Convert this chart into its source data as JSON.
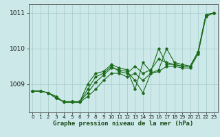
{
  "xlabel": "Graphe pression niveau de la mer (hPa)",
  "bg_color": "#cce8e8",
  "grid_color": "#aad0d0",
  "line_color": "#1a6b1a",
  "series": [
    [
      1008.8,
      1008.8,
      1008.75,
      1008.6,
      1008.5,
      1008.5,
      1008.5,
      1008.75,
      1009.05,
      1009.25,
      1009.45,
      1009.4,
      1009.35,
      1009.1,
      1008.75,
      1009.3,
      1009.4,
      1010.0,
      1009.6,
      1009.55,
      1009.5,
      1009.9,
      1010.95,
      1011.0
    ],
    [
      1008.8,
      1008.8,
      1008.75,
      1008.6,
      1008.5,
      1008.5,
      1008.5,
      1008.85,
      1009.2,
      1009.3,
      1009.5,
      1009.35,
      1009.3,
      1009.5,
      1009.3,
      1009.4,
      1009.7,
      1009.6,
      1009.55,
      1009.5,
      1009.5,
      1009.9,
      1010.95,
      1011.0
    ],
    [
      1008.8,
      1008.8,
      1008.75,
      1008.6,
      1008.5,
      1008.5,
      1008.5,
      1009.0,
      1009.3,
      1009.35,
      1009.55,
      1009.45,
      1009.4,
      1008.85,
      1009.6,
      1009.35,
      1010.0,
      1009.55,
      1009.55,
      1009.5,
      1009.5,
      1009.9,
      1010.95,
      1011.0
    ],
    [
      1008.8,
      1008.8,
      1008.75,
      1008.65,
      1008.48,
      1008.48,
      1008.48,
      1008.65,
      1008.85,
      1009.1,
      1009.3,
      1009.3,
      1009.2,
      1009.3,
      1009.1,
      1009.3,
      1009.35,
      1009.5,
      1009.5,
      1009.45,
      1009.45,
      1009.85,
      1010.9,
      1011.0
    ]
  ],
  "ylim": [
    1008.2,
    1011.25
  ],
  "yticks": [
    1009,
    1010,
    1011
  ],
  "xlim": [
    -0.5,
    23.5
  ],
  "xticks": [
    0,
    1,
    2,
    3,
    4,
    5,
    6,
    7,
    8,
    9,
    10,
    11,
    12,
    13,
    14,
    15,
    16,
    17,
    18,
    19,
    20,
    21,
    22,
    23
  ],
  "figsize": [
    3.2,
    2.0
  ],
  "dpi": 100
}
